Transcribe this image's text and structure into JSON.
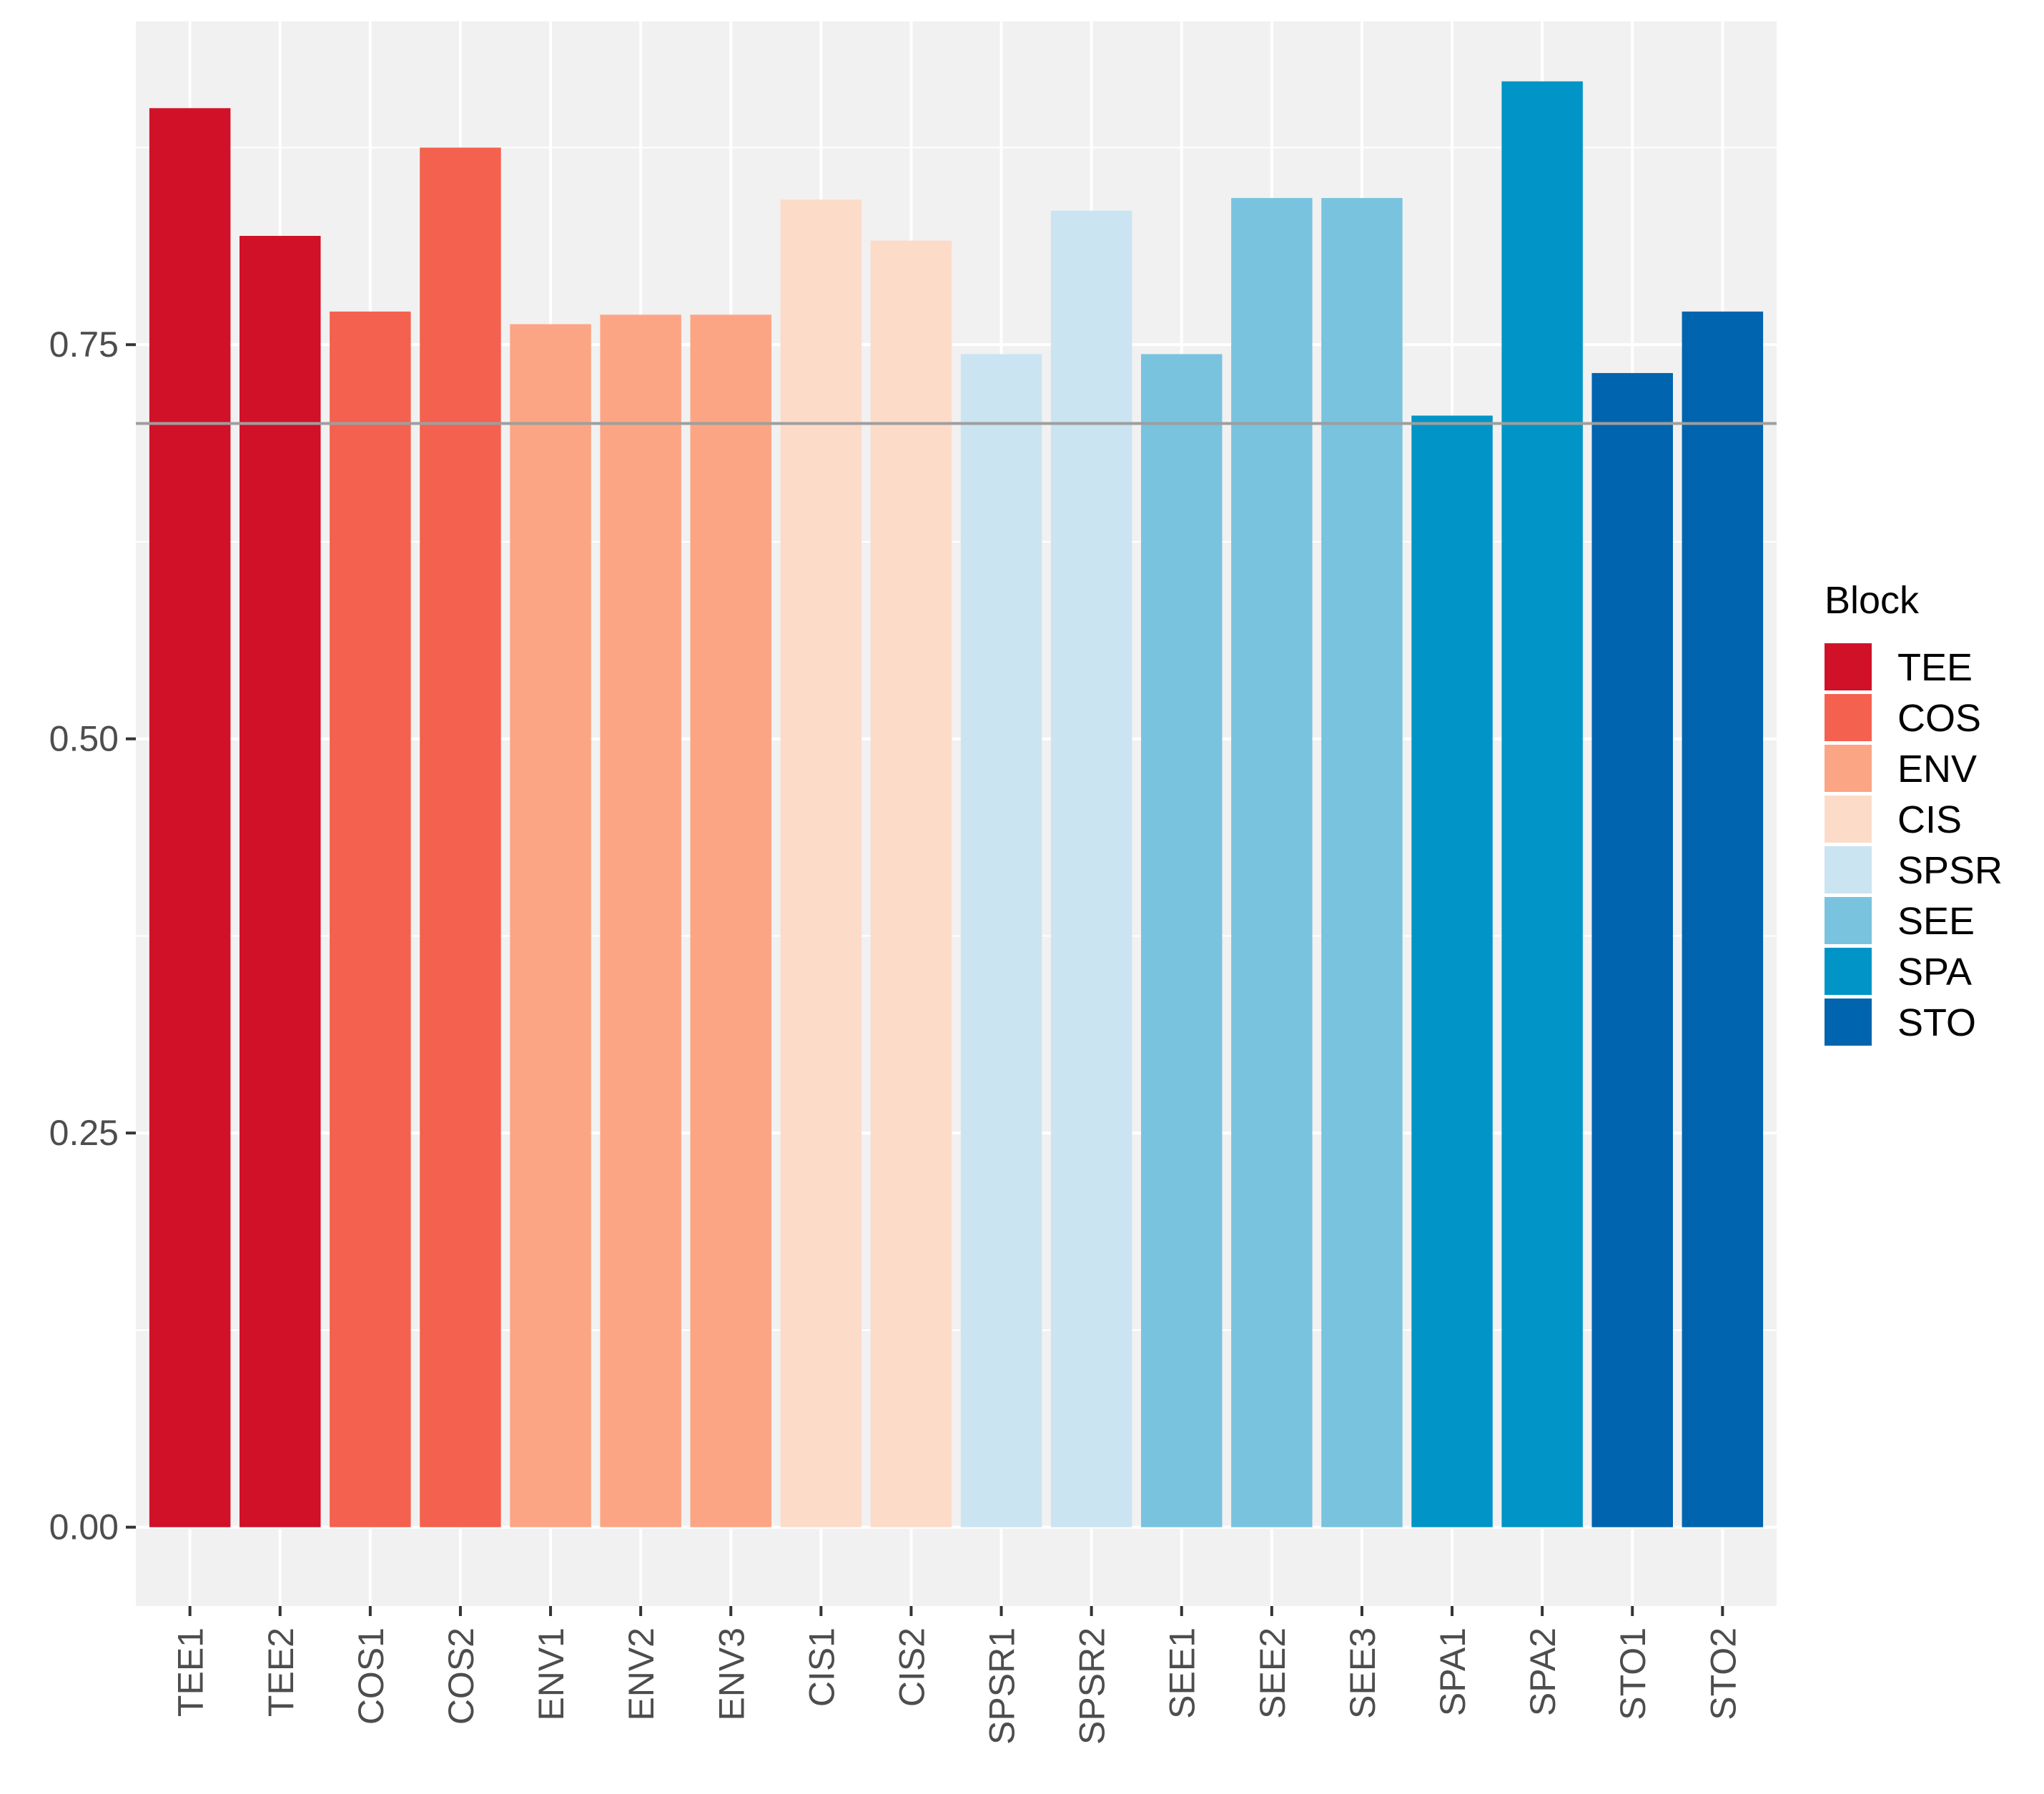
{
  "chart_data": {
    "type": "bar",
    "categories": [
      "TEE1",
      "TEE2",
      "COS1",
      "COS2",
      "ENV1",
      "ENV2",
      "ENV3",
      "CIS1",
      "CIS2",
      "SPSR1",
      "SPSR2",
      "SEE1",
      "SEE2",
      "SEE3",
      "SPA1",
      "SPA2",
      "STO1",
      "STO2"
    ],
    "values": [
      0.9,
      0.819,
      0.771,
      0.875,
      0.763,
      0.769,
      0.769,
      0.842,
      0.816,
      0.744,
      0.835,
      0.744,
      0.843,
      0.843,
      0.705,
      0.917,
      0.732,
      0.771
    ],
    "groups": [
      "TEE",
      "TEE",
      "COS",
      "COS",
      "ENV",
      "ENV",
      "ENV",
      "CIS",
      "CIS",
      "SPSR",
      "SPSR",
      "SEE",
      "SEE",
      "SEE",
      "SPA",
      "SPA",
      "STO",
      "STO"
    ],
    "title": "",
    "xlabel": "",
    "ylabel": "",
    "ylim": [
      -0.05,
      0.955
    ],
    "yticks": [
      "0.00",
      "0.25",
      "0.50",
      "0.75"
    ],
    "ytick_values": [
      0,
      0.25,
      0.5,
      0.75
    ],
    "reference_line": 0.7,
    "reference_line_color": "#9e9e9e",
    "grid": true,
    "panel_background": "#f1f1f1",
    "grid_color": "#ffffff",
    "legend": {
      "title": "Block",
      "position": "right",
      "entries": [
        {
          "label": "TEE",
          "color": "#d01128"
        },
        {
          "label": "COS",
          "color": "#f4614f"
        },
        {
          "label": "ENV",
          "color": "#fca584"
        },
        {
          "label": "CIS",
          "color": "#fddbc9"
        },
        {
          "label": "SPSR",
          "color": "#cbe4f1"
        },
        {
          "label": "SEE",
          "color": "#79c3df"
        },
        {
          "label": "SPA",
          "color": "#0095c6"
        },
        {
          "label": "STO",
          "color": "#0064ae"
        }
      ]
    }
  }
}
